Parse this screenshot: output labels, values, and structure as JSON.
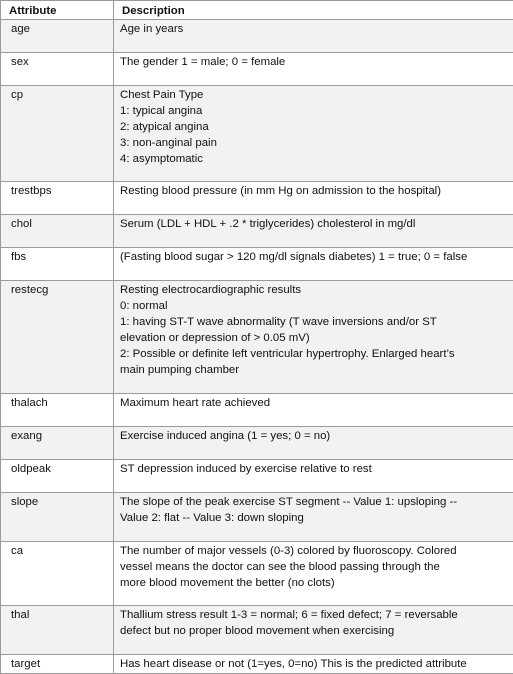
{
  "header": {
    "attribute": "Attribute",
    "description": "Description"
  },
  "rows": [
    {
      "attribute": "age",
      "lines": [
        "Age in years"
      ]
    },
    {
      "attribute": "sex",
      "lines": [
        "The gender 1 = male; 0 = female"
      ]
    },
    {
      "attribute": "cp",
      "lines": [
        "Chest Pain Type",
        "1: typical angina",
        "2: atypical angina",
        "3: non-anginal pain",
        "4: asymptomatic"
      ]
    },
    {
      "attribute": "trestbps",
      "lines": [
        "Resting blood pressure (in mm Hg on admission to the hospital)"
      ]
    },
    {
      "attribute": "chol",
      "lines": [
        "Serum (LDL + HDL + .2 * triglycerides) cholesterol in mg/dl"
      ]
    },
    {
      "attribute": "fbs",
      "lines": [
        "(Fasting blood sugar > 120 mg/dl signals diabetes) 1 = true; 0 = false"
      ]
    },
    {
      "attribute": "restecg",
      "lines": [
        "Resting electrocardiographic results",
        "0: normal",
        "1: having ST-T wave abnormality (T wave inversions and/or ST",
        "elevation or depression of > 0.05 mV)",
        "2: Possible or definite left ventricular hypertrophy.  Enlarged heart’s",
        "main pumping chamber"
      ]
    },
    {
      "attribute": "thalach",
      "lines": [
        "Maximum heart rate achieved"
      ]
    },
    {
      "attribute": "exang",
      "lines": [
        "Exercise induced angina (1 = yes; 0 = no)"
      ]
    },
    {
      "attribute": "oldpeak",
      "lines": [
        "ST depression induced by exercise relative to rest"
      ]
    },
    {
      "attribute": "slope",
      "lines": [
        "The slope of the peak exercise ST segment -- Value 1: upsloping --",
        "Value 2: flat -- Value 3: down sloping"
      ]
    },
    {
      "attribute": "ca",
      "lines": [
        "The number of major vessels (0-3) colored by fluoroscopy.  Colored",
        "vessel means the doctor can see the blood passing through the",
        "more blood movement the better (no clots)"
      ]
    },
    {
      "attribute": "thal",
      "lines": [
        "Thallium stress result  1-3 = normal; 6 = fixed defect; 7 = reversable",
        "defect but no proper blood movement when exercising"
      ]
    },
    {
      "attribute": "target",
      "lines": [
        "Has heart disease or not (1=yes, 0=no) This is the predicted attribute"
      ]
    }
  ]
}
